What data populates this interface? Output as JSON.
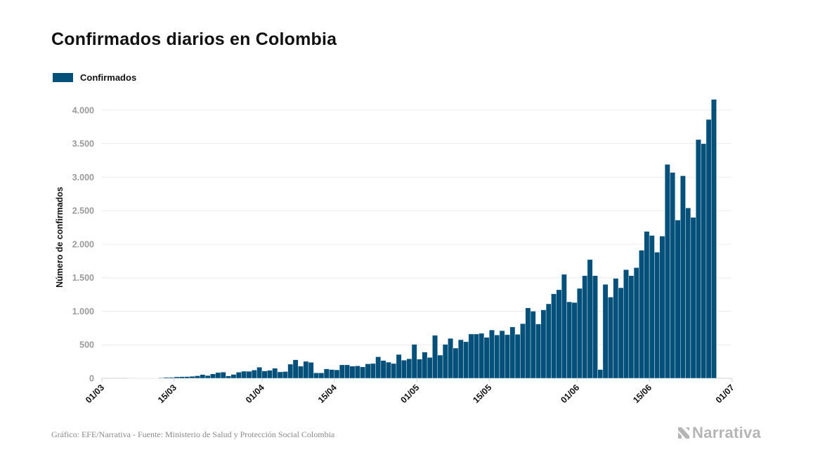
{
  "title": "Confirmados diarios en Colombia",
  "legend": {
    "label": "Confirmados",
    "color": "#03507a"
  },
  "footer": "Gráfico: EFE/Narrativa - Fuente: Ministerio de Salud y Protección Social Colombia",
  "logo": {
    "text": "Narrativa",
    "icon": "narrativa-logo-icon"
  },
  "chart_data": {
    "type": "bar",
    "ylabel": "Número de confirmados",
    "xlabel": "",
    "ylim": [
      0,
      4250
    ],
    "yticks": [
      0,
      500,
      1000,
      1500,
      2000,
      2500,
      3000,
      3500,
      4000
    ],
    "ytick_labels": [
      "0",
      "500",
      "1.000",
      "1.500",
      "2.000",
      "2.500",
      "3.000",
      "3.500",
      "4.000"
    ],
    "xticks": [
      {
        "label": "01/03",
        "index": 0
      },
      {
        "label": "15/03",
        "index": 14
      },
      {
        "label": "01/04",
        "index": 31
      },
      {
        "label": "15/04",
        "index": 45
      },
      {
        "label": "01/05",
        "index": 61
      },
      {
        "label": "15/05",
        "index": 75
      },
      {
        "label": "01/06",
        "index": 92
      },
      {
        "label": "15/06",
        "index": 106
      },
      {
        "label": "01/07",
        "index": 122
      }
    ],
    "grid": true,
    "legend_position": "top-left",
    "color": "#03507a",
    "start_date": "01/03",
    "values": [
      0,
      0,
      0,
      0,
      0,
      1,
      1,
      2,
      2,
      5,
      4,
      8,
      14,
      13,
      21,
      24,
      25,
      29,
      37,
      55,
      41,
      65,
      85,
      92,
      35,
      57,
      90,
      105,
      104,
      122,
      165,
      109,
      119,
      150,
      95,
      100,
      210,
      276,
      180,
      252,
      237,
      80,
      80,
      140,
      130,
      125,
      200,
      200,
      180,
      185,
      170,
      215,
      220,
      320,
      265,
      240,
      220,
      355,
      270,
      290,
      505,
      285,
      390,
      310,
      640,
      345,
      505,
      595,
      450,
      575,
      545,
      660,
      660,
      670,
      610,
      720,
      645,
      710,
      650,
      765,
      655,
      815,
      1050,
      1000,
      810,
      1020,
      1110,
      1260,
      1320,
      1550,
      1140,
      1130,
      1340,
      1530,
      1770,
      1530,
      130,
      1400,
      1210,
      1490,
      1350,
      1620,
      1530,
      1650,
      1910,
      2190,
      2130,
      1880,
      2120,
      3190,
      3070,
      2360,
      3020,
      2540,
      2400,
      3560,
      3500,
      3860,
      4160
    ]
  }
}
